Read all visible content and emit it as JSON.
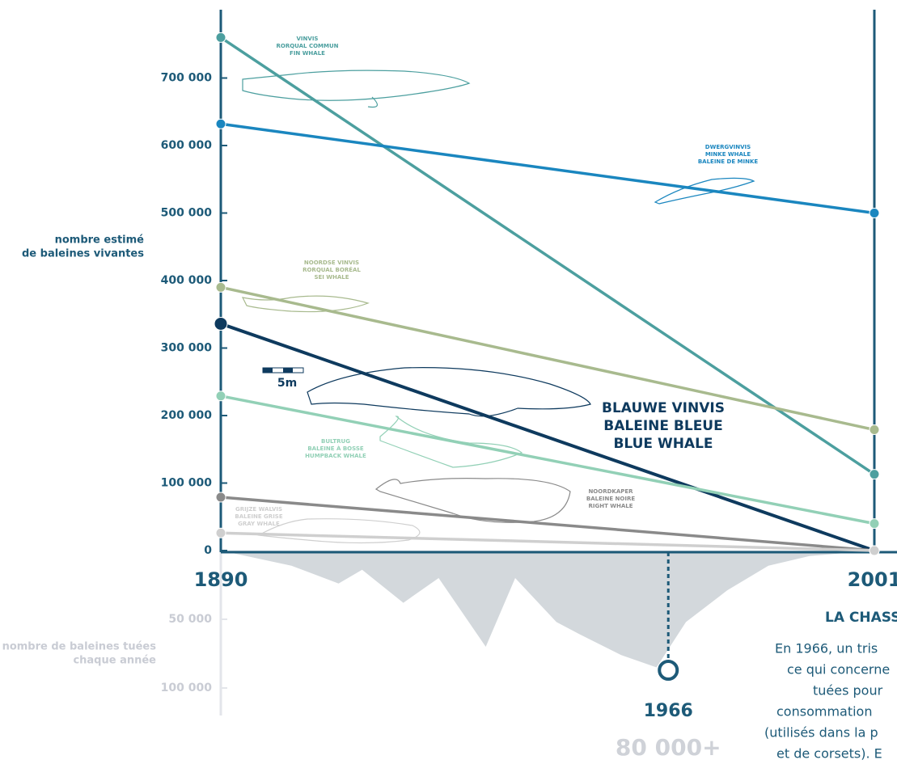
{
  "chart_data": {
    "type": "line",
    "y_label_lines": [
      "nombre estimé",
      "de baleines vivantes"
    ],
    "x": [
      1890,
      2001
    ],
    "xlim": [
      1890,
      2001
    ],
    "xticks": [
      1890,
      2001
    ],
    "ylim": [
      0,
      800000
    ],
    "yticks": [
      {
        "value": 0,
        "label": "0"
      },
      {
        "value": 100000,
        "label": "100 000"
      },
      {
        "value": 200000,
        "label": "200 000"
      },
      {
        "value": 300000,
        "label": "300 000"
      },
      {
        "value": 400000,
        "label": "400 000"
      },
      {
        "value": 500000,
        "label": "500 000"
      },
      {
        "value": 600000,
        "label": "600 000"
      },
      {
        "value": 700000,
        "label": "700 000"
      }
    ],
    "series": [
      {
        "name_lines": [
          "VINVIS",
          "RORQUAL COMMUN",
          "FIN WHALE"
        ],
        "color": "#4c9f9f",
        "values": [
          760000,
          113000
        ]
      },
      {
        "name_lines": [
          "DWERGVINVIS",
          "MINKE WHALE",
          "BALEINE DE MINKE"
        ],
        "color": "#1a86bf",
        "values": [
          632000,
          500000
        ]
      },
      {
        "name_lines": [
          "NOORDSE VINVIS",
          "RORQUAL BORÉAL",
          "SEI WHALE"
        ],
        "color": "#a8ba8e",
        "values": [
          390000,
          179000
        ]
      },
      {
        "name_lines": [
          "BLAUWE VINVIS",
          "BALEINE BLEUE",
          "BLUE WHALE"
        ],
        "color": "#0e3a5e",
        "values": [
          336000,
          0
        ]
      },
      {
        "name_lines": [
          "BULTRUG",
          "BALEINE À BOSSE",
          "HUMPBACK WHALE"
        ],
        "color": "#92d0b6",
        "values": [
          229000,
          40000
        ]
      },
      {
        "name_lines": [
          "NOORDKAPER",
          "BALEINE NOIRE",
          "RIGHT WHALE"
        ],
        "color": "#8a8a8a",
        "values": [
          79000,
          0
        ]
      },
      {
        "name_lines": [
          "GRIJZE WALVIS",
          "BALEINE GRISE",
          "GRAY WHALE"
        ],
        "color": "#cfcfcf",
        "values": [
          26000,
          0
        ]
      }
    ],
    "scale_label": "5m",
    "kills": {
      "y_label_lines": [
        "nombre de baleines tuées",
        "chaque année"
      ],
      "color": "#d3d8dc",
      "ylim": [
        0,
        120000
      ],
      "yticks": [
        {
          "value": 50000,
          "label": "50 000"
        },
        {
          "value": 100000,
          "label": "100 000"
        }
      ],
      "x": [
        1890,
        1902,
        1910,
        1914,
        1921,
        1927,
        1935,
        1940,
        1947,
        1951,
        1958,
        1964,
        1969,
        1976,
        1983,
        1990,
        2001
      ],
      "values": [
        0,
        11000,
        24000,
        14000,
        38000,
        20000,
        70000,
        20000,
        52000,
        61000,
        76000,
        85000,
        52000,
        29000,
        11000,
        4000,
        0
      ]
    },
    "peak": {
      "x": 1966,
      "value": {
        "value": 80000,
        "label": "80 000+"
      }
    },
    "side_text": {
      "title": "LA CHASS",
      "lines": [
        "En 1966, un tris",
        "ce qui concerne",
        "tuées pour",
        "consommation",
        "(utilisés dans la p",
        "et de corsets). E"
      ]
    }
  }
}
